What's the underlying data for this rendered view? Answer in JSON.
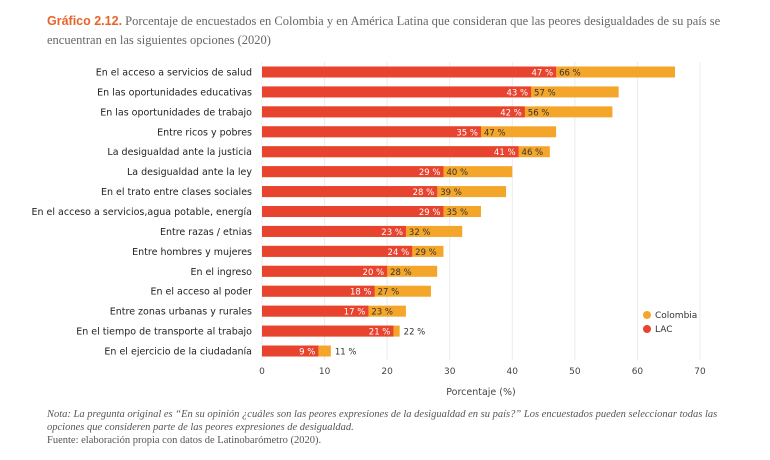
{
  "title": {
    "lead": "Gráfico 2.12.",
    "text": "Porcentaje de encuestados en Colombia y en América Latina que consideran que las peores desigualdades de su país se encuentran en las siguientes opciones (2020)"
  },
  "notes": {
    "nota": "Nota: La pregunta original es “En su opinión ¿cuáles son las peores expresiones de la desigualdad en su país?” Los encuestados pueden seleccionar todas las opciones que consideren parte de las peores expresiones de desigualdad.",
    "fuente": "Fuente: elaboración propia con datos de Latinobarómetro (2020)."
  },
  "chart_data": {
    "type": "bar",
    "orientation": "horizontal",
    "overlapping": true,
    "categories": [
      "En el acceso a servicios de salud",
      "En las oportunidades educativas",
      "En las oportunidades de trabajo",
      "Entre ricos y pobres",
      "La desigualdad ante la justicia",
      "La desigualdad ante la ley",
      "En el trato entre clases sociales",
      "En el acceso a servicios,agua potable, energía",
      "Entre razas / etnias",
      "Entre hombres y mujeres",
      "En el ingreso",
      "En el acceso al poder",
      "Entre zonas urbanas y rurales",
      "En el tiempo de transporte al trabajo",
      "En el ejercicio de la ciudadanía"
    ],
    "series": [
      {
        "name": "Colombia",
        "color": "#f4a62a",
        "values": [
          66,
          57,
          56,
          47,
          46,
          40,
          39,
          35,
          32,
          29,
          28,
          27,
          23,
          22,
          11
        ]
      },
      {
        "name": "LAC",
        "color": "#e8432e",
        "values": [
          47,
          43,
          42,
          35,
          41,
          29,
          28,
          29,
          23,
          24,
          20,
          18,
          17,
          21,
          9
        ]
      }
    ],
    "value_suffix": " %",
    "xlabel": "Porcentaje (%)",
    "xlim": [
      0,
      70
    ],
    "xticks": [
      0,
      10,
      20,
      30,
      40,
      50,
      60,
      70
    ],
    "grid": "vertical",
    "legend_position": "right"
  }
}
